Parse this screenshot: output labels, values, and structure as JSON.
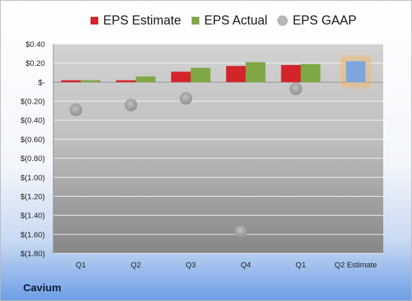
{
  "company": "Cavium",
  "legend": [
    {
      "label": "EPS Estimate",
      "color": "#d4242b",
      "shape": "square"
    },
    {
      "label": "EPS Actual",
      "color": "#7fa844",
      "shape": "square"
    },
    {
      "label": "EPS GAAP",
      "color": "#b4b6b8",
      "shape": "circle"
    }
  ],
  "chart_data": {
    "type": "bar",
    "categories": [
      "Q1",
      "Q2",
      "Q3",
      "Q4",
      "Q1",
      "Q2 Estimate"
    ],
    "yticks": [
      "$0.40",
      "$0.20",
      "$-",
      "$(0.20)",
      "$(0.40)",
      "$(0.60)",
      "$(0.80)",
      "$(1.00)",
      "$(1.20)",
      "$(1.40)",
      "$(1.60)",
      "$(1.80)"
    ],
    "ylim": [
      -1.8,
      0.4
    ],
    "grid": true,
    "legend_position": "top",
    "series": [
      {
        "name": "EPS Estimate",
        "color": "#d4242b",
        "values": [
          0.02,
          0.02,
          0.11,
          0.17,
          0.18,
          null
        ]
      },
      {
        "name": "EPS Actual",
        "color": "#7fa844",
        "values": [
          0.02,
          0.06,
          0.15,
          0.21,
          0.19,
          null
        ]
      },
      {
        "name": "EPS GAAP",
        "color": "#a9abad",
        "values": [
          -0.29,
          -0.24,
          -0.17,
          -1.57,
          -0.07,
          null
        ]
      }
    ],
    "forecast": {
      "category": "Q2 Estimate",
      "value": 0.22,
      "color": "#7fa6dc",
      "glow": "#f6b35c"
    }
  }
}
